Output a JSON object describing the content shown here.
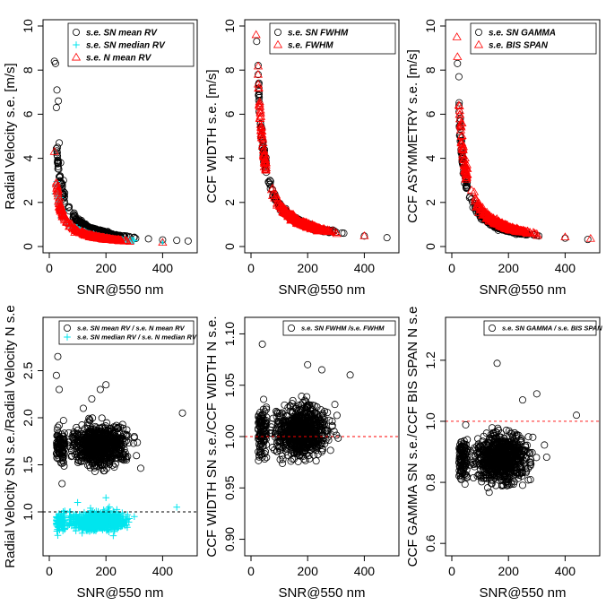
{
  "chart_data": [
    {
      "type": "scatter",
      "xlabel": "SNR@550 nm",
      "ylabel": "Radial Velocity s.e. [m/s]",
      "xlim": [
        0,
        500
      ],
      "ylim": [
        0,
        10
      ],
      "xticks": [
        0,
        200,
        400
      ],
      "yticks": [
        0,
        2,
        4,
        6,
        8,
        10
      ],
      "legend": "top-right",
      "grid": false,
      "series": [
        {
          "name": "s.e. SN mean RV",
          "marker": "circle",
          "color": "#000000",
          "model": {
            "form": "a/x+b",
            "a": 115,
            "b": 0.02,
            "spread": 0.1
          },
          "x": [
            18,
            22,
            25,
            27,
            32,
            35,
            40,
            50,
            70,
            100,
            150,
            200,
            250,
            300,
            350,
            400,
            450,
            490
          ],
          "y": [
            8.4,
            8.3,
            6.3,
            7.1,
            6.6,
            4.7,
            3.8,
            3.0,
            1.8,
            1.2,
            0.8,
            0.6,
            0.5,
            0.42,
            0.35,
            0.3,
            0.28,
            0.25
          ]
        },
        {
          "name": "s.e. SN median RV",
          "marker": "plus",
          "color": "#00e5ee",
          "model": {
            "form": "a/x+b",
            "a": 75,
            "b": 0.0,
            "spread": 0.1
          },
          "x": [
            20,
            30,
            40,
            60,
            80,
            100,
            150,
            200,
            300,
            400
          ],
          "y": [
            2.4,
            1.9,
            1.3,
            1.0,
            0.85,
            0.7,
            0.45,
            0.38,
            0.27,
            0.2
          ]
        },
        {
          "name": "s.e. N mean RV",
          "marker": "triangle",
          "color": "#ff0000",
          "model": {
            "form": "a/x+b",
            "a": 70,
            "b": 0.0,
            "spread": 0.1
          },
          "x": [
            18,
            25,
            30,
            40,
            60,
            100,
            200,
            400
          ],
          "y": [
            4.3,
            2.9,
            2.4,
            1.9,
            1.2,
            0.7,
            0.35,
            0.18
          ]
        }
      ]
    },
    {
      "type": "scatter",
      "xlabel": "SNR@550 nm",
      "ylabel": "CCF WIDTH s.e. [m/s]",
      "xlim": [
        0,
        500
      ],
      "ylim": [
        0,
        10
      ],
      "xticks": [
        0,
        200,
        400
      ],
      "yticks": [
        0,
        2,
        4,
        6,
        8,
        10
      ],
      "legend": "top-right",
      "grid": false,
      "series": [
        {
          "name": "s.e. SN FWHM",
          "marker": "circle",
          "color": "#000000",
          "model": {
            "form": "a/x+b",
            "a": 190,
            "b": 0.0,
            "spread": 0.08
          },
          "x": [
            20,
            30,
            50,
            100,
            200,
            300,
            400,
            480
          ],
          "y": [
            9.3,
            6.5,
            3.9,
            1.9,
            0.95,
            0.65,
            0.48,
            0.4
          ]
        },
        {
          "name": "s.e. FWHM",
          "marker": "triangle",
          "color": "#ff0000",
          "model": {
            "form": "a/x+b",
            "a": 190,
            "b": 0.0,
            "spread": 0.09
          },
          "x": [
            18,
            25,
            30,
            50,
            100,
            200,
            300,
            400
          ],
          "y": [
            9.6,
            7.8,
            6.4,
            3.8,
            1.9,
            0.95,
            0.63,
            0.48
          ]
        }
      ]
    },
    {
      "type": "scatter",
      "xlabel": "SNR@550 nm",
      "ylabel": "CCF ASYMMETRY s.e. [m/s]",
      "xlim": [
        0,
        500
      ],
      "ylim": [
        0,
        10
      ],
      "xticks": [
        0,
        200,
        400
      ],
      "yticks": [
        0,
        2,
        4,
        6,
        8,
        10
      ],
      "legend": "top-right",
      "grid": false,
      "series": [
        {
          "name": "s.e. SN GAMMA",
          "marker": "circle",
          "color": "#000000",
          "model": {
            "form": "a/x+b",
            "a": 150,
            "b": 0.0,
            "spread": 0.1
          },
          "x": [
            20,
            25,
            30,
            50,
            100,
            200,
            300,
            400,
            480
          ],
          "y": [
            8.3,
            7.7,
            5.8,
            3.0,
            1.5,
            0.75,
            0.5,
            0.38,
            0.32
          ]
        },
        {
          "name": "s.e. BIS SPAN",
          "marker": "triangle",
          "color": "#ff0000",
          "model": {
            "form": "a/x+b",
            "a": 170,
            "b": 0.0,
            "spread": 0.1
          },
          "x": [
            18,
            20,
            25,
            30,
            50,
            100,
            200,
            300,
            400,
            490
          ],
          "y": [
            9.5,
            8.6,
            6.4,
            5.5,
            3.4,
            1.7,
            0.85,
            0.57,
            0.43,
            0.36
          ]
        }
      ]
    },
    {
      "type": "scatter",
      "xlabel": "SNR@550 nm",
      "ylabel": "Radial Velocity SN s.e./Radial Velocity N s.e",
      "xlim": [
        0,
        500
      ],
      "ylim": [
        0.6,
        3.0
      ],
      "xticks": [
        0,
        200,
        400
      ],
      "yticks": [
        1.0,
        1.5,
        2.0,
        2.5
      ],
      "legend": "top-right",
      "grid": false,
      "reference_line": {
        "y": 1.0,
        "color": "#000000",
        "style": "dashed"
      },
      "series": [
        {
          "name": "s.e. SN mean RV / s.e. N mean RV",
          "marker": "circle",
          "color": "#000000",
          "center": 1.7,
          "spread": 0.17,
          "x_range": [
            20,
            490
          ],
          "x": [
            25,
            30,
            35,
            45,
            120,
            150,
            180,
            200,
            250,
            300,
            470
          ],
          "y": [
            2.45,
            2.65,
            2.3,
            1.3,
            2.1,
            2.2,
            2.3,
            2.35,
            1.9,
            1.8,
            2.05
          ]
        },
        {
          "name": "s.e. SN median RV / s.e. N median RV",
          "marker": "plus",
          "color": "#00e5ee",
          "center": 0.9,
          "spread": 0.08,
          "x_range": [
            20,
            490
          ],
          "x": [
            30,
            100,
            200,
            300,
            450
          ],
          "y": [
            0.75,
            1.1,
            1.15,
            0.95,
            1.05
          ]
        }
      ]
    },
    {
      "type": "scatter",
      "xlabel": "SNR@550 nm",
      "ylabel": "CCF WIDTH SN s.e./CCF WIDTH N s.e.",
      "xlim": [
        0,
        500
      ],
      "ylim": [
        0.89,
        1.11
      ],
      "xticks": [
        0,
        200,
        400
      ],
      "yticks": [
        0.9,
        0.95,
        1.0,
        1.05,
        1.1
      ],
      "legend": "top-right",
      "grid": false,
      "reference_line": {
        "y": 1.0,
        "color": "#ff0000",
        "style": "dashed"
      },
      "series": [
        {
          "name": "s.e. SN FWHM /s.e. FWHM",
          "marker": "circle",
          "color": "#000000",
          "center": 1.005,
          "spread": 0.02,
          "x_range": [
            20,
            490
          ],
          "x": [
            40,
            200,
            250,
            350
          ],
          "y": [
            1.09,
            1.07,
            1.065,
            1.06
          ]
        }
      ]
    },
    {
      "type": "scatter",
      "xlabel": "SNR@550 nm",
      "ylabel": "CCF GAMMA SN s.e./CCF BIS SPAN N s.e",
      "xlim": [
        0,
        500
      ],
      "ylim": [
        0.58,
        1.32
      ],
      "xticks": [
        0,
        200,
        400
      ],
      "yticks": [
        0.6,
        0.8,
        1.0,
        1.2
      ],
      "legend": "top-right",
      "grid": false,
      "reference_line": {
        "y": 1.0,
        "color": "#ff0000",
        "style": "dashed"
      },
      "series": [
        {
          "name": "s.e. SN GAMMA / s.e. BIS SPAN",
          "marker": "circle",
          "color": "#000000",
          "center": 0.88,
          "spread": 0.065,
          "x_range": [
            20,
            490
          ],
          "x": [
            160,
            250,
            300,
            440
          ],
          "y": [
            1.19,
            1.07,
            1.09,
            1.02
          ]
        }
      ]
    }
  ]
}
